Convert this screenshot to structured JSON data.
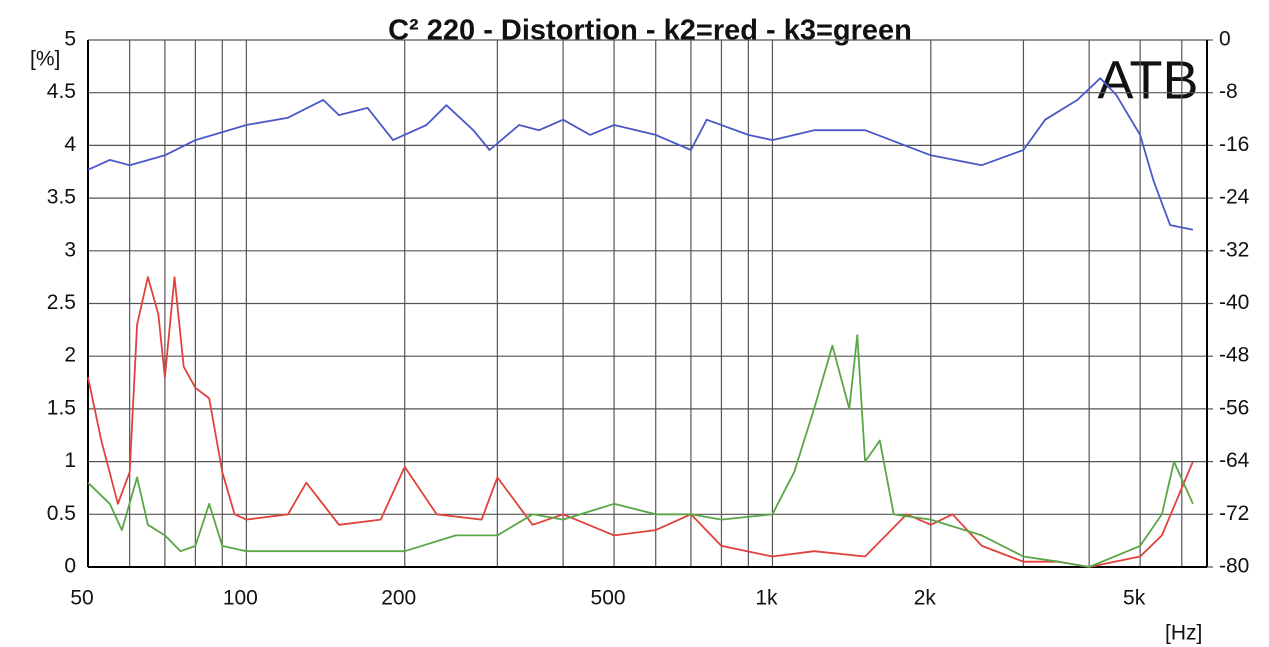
{
  "chart_data": {
    "type": "line",
    "title": "C² 220    - Distortion - k2=red - k3=green",
    "ylabel": "[%]",
    "xlabel": "[Hz]",
    "annotation": "ATB",
    "xscale": "log",
    "grid": true,
    "xlim": [
      50,
      6700
    ],
    "xticks": [
      50,
      100,
      200,
      500,
      {
        "value": 1000,
        "label": "1k"
      },
      {
        "value": 2000,
        "label": "2k"
      },
      {
        "value": 5000,
        "label": "5k"
      }
    ],
    "xminor": [
      60,
      70,
      80,
      90,
      300,
      400,
      600,
      700,
      800,
      900,
      3000,
      4000,
      6000
    ],
    "ylim": [
      0,
      5
    ],
    "yticks": [
      0,
      0.5,
      1,
      1.5,
      2,
      2.5,
      3,
      3.5,
      4,
      4.5,
      5
    ],
    "y2lim": [
      -80,
      0
    ],
    "y2ticks": [
      0,
      -8,
      -16,
      -24,
      -32,
      -40,
      -48,
      -56,
      -64,
      -72,
      -80
    ],
    "series": [
      {
        "color": "#4a58c8",
        "axis": "y2",
        "x": [
          50,
          55,
          60,
          70,
          80,
          100,
          120,
          140,
          150,
          170,
          190,
          220,
          240,
          270,
          290,
          330,
          360,
          400,
          450,
          500,
          600,
          700,
          750,
          900,
          1000,
          1200,
          1500,
          2000,
          2500,
          3000,
          3300,
          3800,
          4200,
          4500,
          5000,
          5300,
          5700,
          6300
        ],
        "values": [
          -19.7,
          -18.2,
          -19.0,
          -17.5,
          -15.2,
          -12.9,
          -11.8,
          -9.1,
          -11.4,
          -10.3,
          -15.2,
          -12.9,
          -9.9,
          -13.7,
          -16.7,
          -12.9,
          -13.7,
          -12.1,
          -14.4,
          -12.9,
          -14.4,
          -16.7,
          -12.1,
          -14.4,
          -15.2,
          -13.7,
          -13.7,
          -17.5,
          -19.0,
          -16.7,
          -12.1,
          -9.1,
          -5.8,
          -8.3,
          -14.4,
          -21.3,
          -28.1,
          -28.8
        ]
      },
      {
        "color": "#e0413c",
        "x": [
          50,
          53,
          57,
          60,
          62,
          65,
          68,
          70,
          73,
          76,
          80,
          85,
          90,
          95,
          100,
          120,
          130,
          150,
          180,
          200,
          230,
          280,
          300,
          350,
          400,
          500,
          600,
          700,
          800,
          1000,
          1200,
          1500,
          1800,
          2000,
          2200,
          2500,
          3000,
          3500,
          4000,
          5000,
          5500,
          6300
        ],
        "values": [
          1.8,
          1.2,
          0.6,
          0.9,
          2.3,
          2.75,
          2.4,
          1.8,
          2.75,
          1.9,
          1.7,
          1.6,
          0.9,
          0.5,
          0.45,
          0.5,
          0.8,
          0.4,
          0.45,
          0.95,
          0.5,
          0.45,
          0.85,
          0.4,
          0.5,
          0.3,
          0.35,
          0.5,
          0.2,
          0.1,
          0.15,
          0.1,
          0.5,
          0.4,
          0.5,
          0.2,
          0.05,
          0.05,
          0.0,
          0.1,
          0.3,
          1.0
        ]
      },
      {
        "color": "#5aa646",
        "x": [
          50,
          55,
          58,
          62,
          65,
          70,
          75,
          80,
          85,
          90,
          100,
          150,
          200,
          250,
          300,
          350,
          400,
          500,
          600,
          700,
          800,
          1000,
          1100,
          1200,
          1300,
          1400,
          1450,
          1500,
          1600,
          1700,
          2000,
          2500,
          3000,
          3500,
          4000,
          5000,
          5500,
          5800,
          6300
        ],
        "values": [
          0.8,
          0.6,
          0.35,
          0.85,
          0.4,
          0.3,
          0.15,
          0.2,
          0.6,
          0.2,
          0.15,
          0.15,
          0.15,
          0.3,
          0.3,
          0.5,
          0.45,
          0.6,
          0.5,
          0.5,
          0.45,
          0.5,
          0.9,
          1.5,
          2.1,
          1.5,
          2.2,
          1.0,
          1.2,
          0.5,
          0.45,
          0.3,
          0.1,
          0.05,
          0.0,
          0.2,
          0.5,
          1.0,
          0.6
        ]
      }
    ]
  }
}
